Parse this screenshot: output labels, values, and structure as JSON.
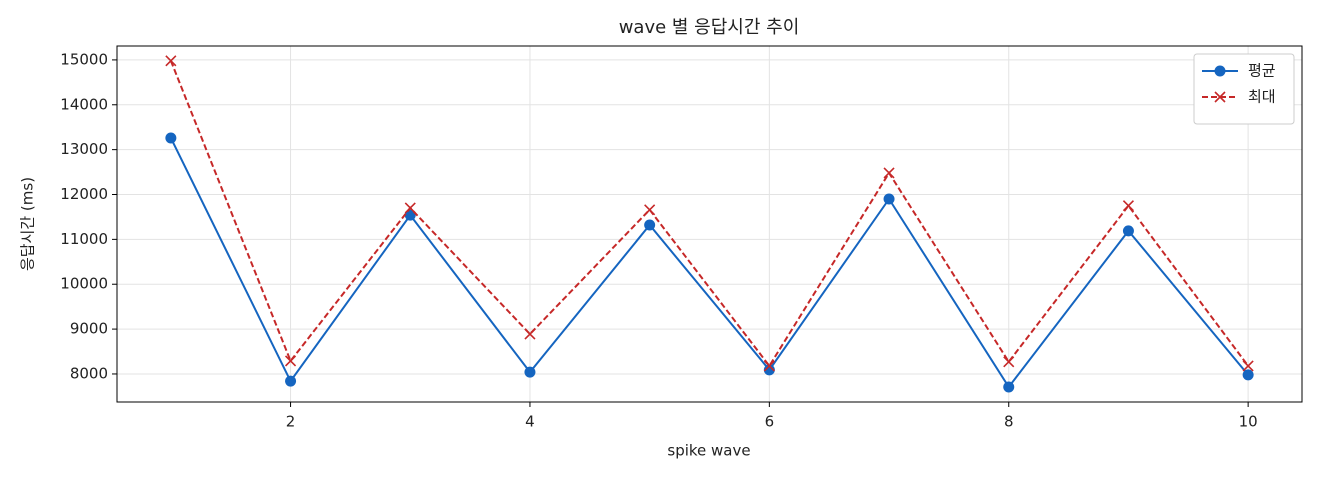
{
  "chart_data": {
    "type": "line",
    "title": "wave 별 응답시간 추이",
    "x_label": "spike wave",
    "y_label": "응답시간 (ms)",
    "x": [
      1,
      2,
      3,
      4,
      5,
      6,
      7,
      8,
      9,
      10
    ],
    "series": [
      {
        "name": "평균",
        "color": "#1565c0",
        "marker": "circle",
        "dashed": false,
        "values": [
          13260,
          7840,
          11540,
          8040,
          11320,
          8090,
          11900,
          7710,
          11190,
          7980
        ]
      },
      {
        "name": "최대",
        "color": "#c62828",
        "marker": "cross",
        "dashed": true,
        "values": [
          14980,
          8290,
          11700,
          8890,
          11660,
          8180,
          12480,
          8270,
          11750,
          8180
        ]
      }
    ],
    "xlim": [
      0.55,
      10.45
    ],
    "ylim": [
      7375,
      15310
    ],
    "xticks": [
      2,
      4,
      6,
      8,
      10
    ],
    "yticks": [
      8000,
      9000,
      10000,
      11000,
      12000,
      13000,
      14000,
      15000
    ],
    "grid": true,
    "legend": "upper right"
  }
}
